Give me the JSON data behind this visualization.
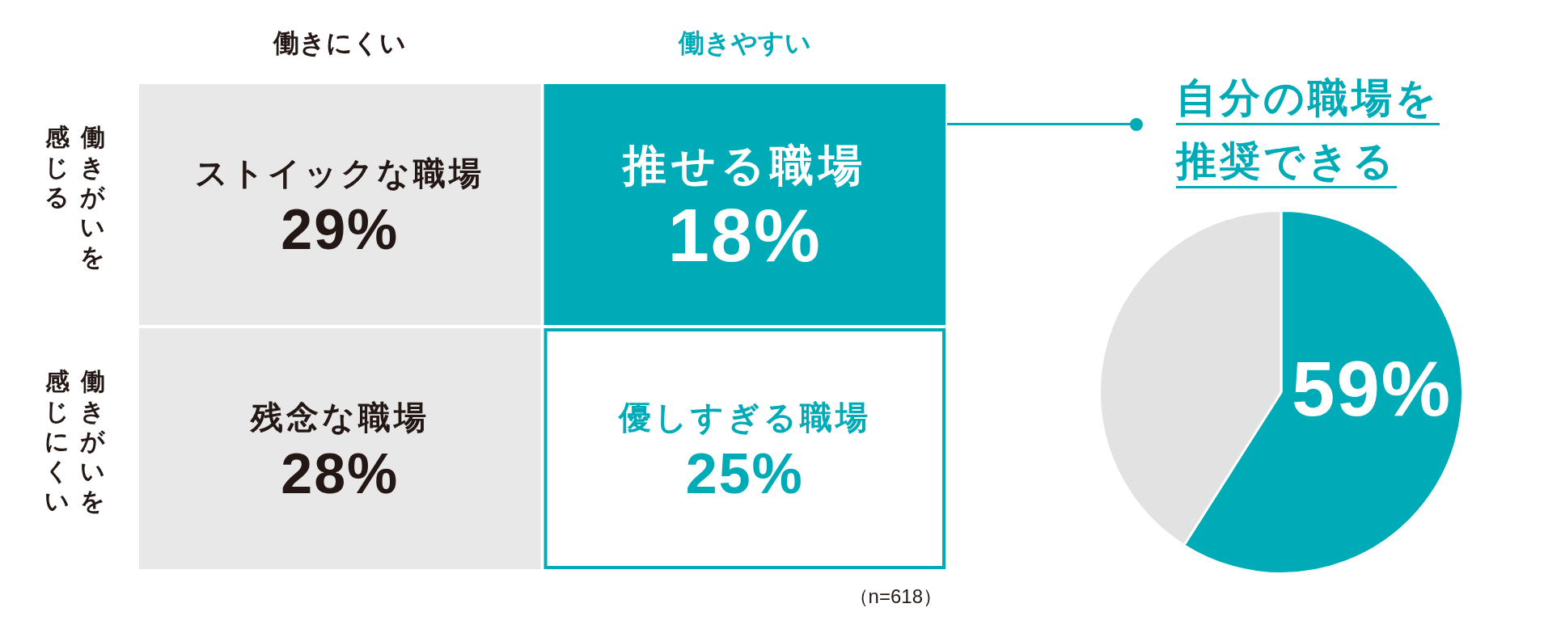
{
  "chart_data": [
    {
      "type": "heatmap",
      "categories": [
        "働きにくい",
        "働きやすい"
      ],
      "y_categories": [
        "働きがいを感じる",
        "働きがいを感じにくい"
      ],
      "cells": [
        [
          29,
          18
        ],
        [
          28,
          25
        ]
      ],
      "cell_labels": [
        [
          "29%",
          "18%"
        ],
        [
          "28%",
          "25%"
        ]
      ],
      "colors": [
        [
          "#e8e8e8",
          "#00abb8"
        ],
        [
          "#e8e8e8",
          "#ffffff"
        ]
      ],
      "annotations": [
        "ストイックな職場",
        "推せる職場",
        "残念な職場",
        "優しすぎる職場",
        "（n=618）"
      ]
    },
    {
      "type": "pie",
      "title": "自分の職場を推奨できる",
      "categories": [
        null,
        null
      ],
      "values": [
        59,
        41
      ],
      "colors": [
        "#00abb8",
        "#e2e2e2"
      ],
      "value_labels": [
        "59%",
        null
      ]
    }
  ]
}
